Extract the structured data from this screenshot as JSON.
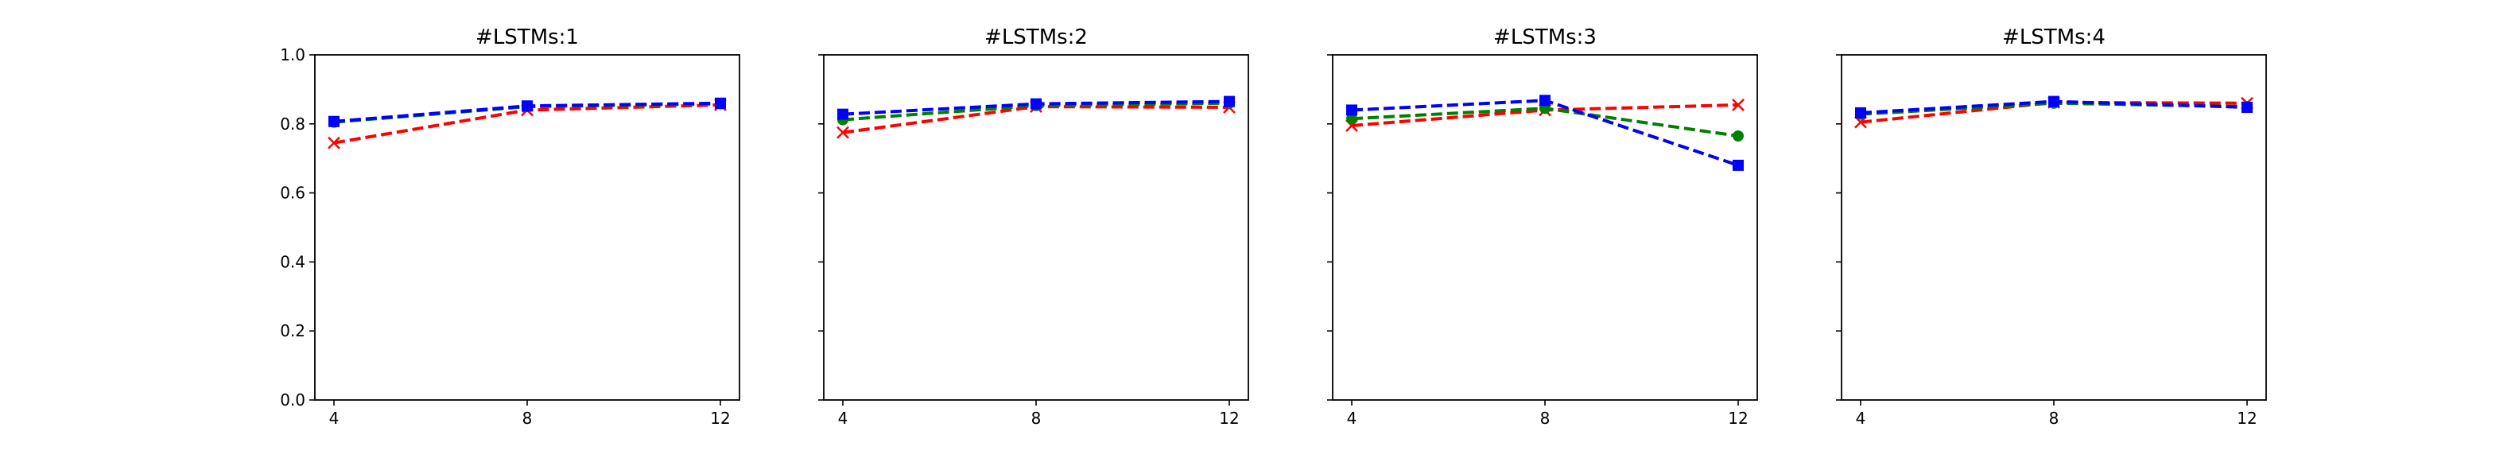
{
  "chart_data": [
    {
      "type": "line",
      "title": "#LSTMs:1",
      "xlabel": "",
      "ylabel": "",
      "x": [
        4,
        8,
        12
      ],
      "xticks": [
        "4",
        "8",
        "12"
      ],
      "yticks": [
        "0.0",
        "0.2",
        "0.4",
        "0.6",
        "0.8",
        "1.0"
      ],
      "ylim": [
        0,
        1.0
      ],
      "grid": false,
      "series": [
        {
          "color": "#ff0000",
          "marker": "x",
          "style": "dashed",
          "values": [
            0.745,
            0.84,
            0.855
          ]
        },
        {
          "color": "#008000",
          "marker": "circle",
          "style": "dashed",
          "values": [
            0.805,
            0.85,
            0.858
          ]
        },
        {
          "color": "#0000ff",
          "marker": "square",
          "style": "dashed",
          "values": [
            0.807,
            0.852,
            0.86
          ]
        }
      ]
    },
    {
      "type": "line",
      "title": "#LSTMs:2",
      "xlabel": "",
      "ylabel": "",
      "x": [
        4,
        8,
        12
      ],
      "xticks": [
        "4",
        "8",
        "12"
      ],
      "yticks": [
        "0.0",
        "0.2",
        "0.4",
        "0.6",
        "0.8",
        "1.0"
      ],
      "ylim": [
        0,
        1.0
      ],
      "grid": false,
      "series": [
        {
          "color": "#ff0000",
          "marker": "x",
          "style": "dashed",
          "values": [
            0.775,
            0.85,
            0.848
          ]
        },
        {
          "color": "#008000",
          "marker": "circle",
          "style": "dashed",
          "values": [
            0.812,
            0.853,
            0.86
          ]
        },
        {
          "color": "#0000ff",
          "marker": "square",
          "style": "dashed",
          "values": [
            0.828,
            0.858,
            0.865
          ]
        }
      ]
    },
    {
      "type": "line",
      "title": "#LSTMs:3",
      "xlabel": "",
      "ylabel": "",
      "x": [
        4,
        8,
        12
      ],
      "xticks": [
        "4",
        "8",
        "12"
      ],
      "yticks": [
        "0.0",
        "0.2",
        "0.4",
        "0.6",
        "0.8",
        "1.0"
      ],
      "ylim": [
        0,
        1.0
      ],
      "grid": false,
      "series": [
        {
          "color": "#ff0000",
          "marker": "x",
          "style": "dashed",
          "values": [
            0.795,
            0.84,
            0.855
          ]
        },
        {
          "color": "#008000",
          "marker": "circle",
          "style": "dashed",
          "values": [
            0.815,
            0.845,
            0.765
          ]
        },
        {
          "color": "#0000ff",
          "marker": "square",
          "style": "dashed",
          "values": [
            0.84,
            0.868,
            0.68
          ]
        }
      ]
    },
    {
      "type": "line",
      "title": "#LSTMs:4",
      "xlabel": "",
      "ylabel": "",
      "x": [
        4,
        8,
        12
      ],
      "xticks": [
        "4",
        "8",
        "12"
      ],
      "yticks": [
        "0.0",
        "0.2",
        "0.4",
        "0.6",
        "0.8",
        "1.0"
      ],
      "ylim": [
        0,
        1.0
      ],
      "grid": false,
      "series": [
        {
          "color": "#ff0000",
          "marker": "x",
          "style": "dashed",
          "values": [
            0.805,
            0.862,
            0.86
          ]
        },
        {
          "color": "#008000",
          "marker": "circle",
          "style": "dashed",
          "values": [
            0.828,
            0.86,
            0.85
          ]
        },
        {
          "color": "#0000ff",
          "marker": "square",
          "style": "dashed",
          "values": [
            0.832,
            0.865,
            0.848
          ]
        }
      ]
    }
  ]
}
